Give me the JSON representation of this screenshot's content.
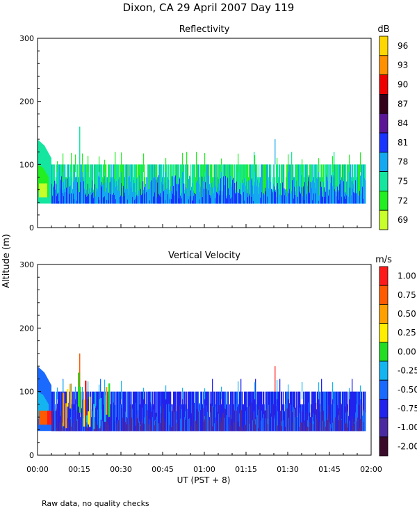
{
  "figure": {
    "title": "Dixon, CA 29 April 2007  Day 119",
    "shared_ylabel": "Altitude (m)",
    "xlabel": "UT  (PST + 8)",
    "note": "Raw data, no quality checks"
  },
  "chart_data": [
    {
      "type": "heatmap",
      "title": "Reflectivity",
      "x_ticks": [
        "00:00",
        "00:15",
        "00:30",
        "00:45",
        "01:00",
        "01:15",
        "01:30",
        "01:45",
        "02:00"
      ],
      "xlim_minutes": [
        0,
        120
      ],
      "y_ticks": [
        "0",
        "100",
        "200",
        "300"
      ],
      "ylim_m": [
        0,
        300
      ],
      "colorbar": {
        "unit": "dB",
        "labels": [
          "96",
          "93",
          "90",
          "87",
          "84",
          "81",
          "78",
          "75",
          "72",
          "69"
        ],
        "colors": [
          "#ffd700",
          "#ff9000",
          "#ee0000",
          "#33001a",
          "#5a1696",
          "#1a33ff",
          "#14a8f0",
          "#14e6a0",
          "#22ee22",
          "#c8ff2a"
        ]
      },
      "data_extent": {
        "min_alt_m": 38,
        "typical_top_m": 100,
        "max_spike_m": 160,
        "spike_time": "00:15"
      }
    },
    {
      "type": "heatmap",
      "title": "Vertical Velocity",
      "x_ticks": [
        "00:00",
        "00:15",
        "00:30",
        "00:45",
        "01:00",
        "01:15",
        "01:30",
        "01:45",
        "02:00"
      ],
      "xlim_minutes": [
        0,
        120
      ],
      "y_ticks": [
        "0",
        "100",
        "200",
        "300"
      ],
      "ylim_m": [
        0,
        300
      ],
      "colorbar": {
        "unit": "m/s",
        "labels": [
          "1.00",
          "0.75",
          "0.50",
          "0.25",
          "0.00",
          "-0.25",
          "-0.50",
          "-0.75",
          "-1.00",
          "-2.00"
        ],
        "colors": [
          "#ff1a1a",
          "#ff5a00",
          "#ffa000",
          "#ffee00",
          "#22dd22",
          "#14b4f0",
          "#1a6aff",
          "#2222ee",
          "#4a2aa0",
          "#3a0a2a"
        ]
      },
      "data_extent": {
        "min_alt_m": 38,
        "typical_top_m": 100,
        "max_spike_m": 160,
        "spike_time": "00:15"
      }
    }
  ]
}
